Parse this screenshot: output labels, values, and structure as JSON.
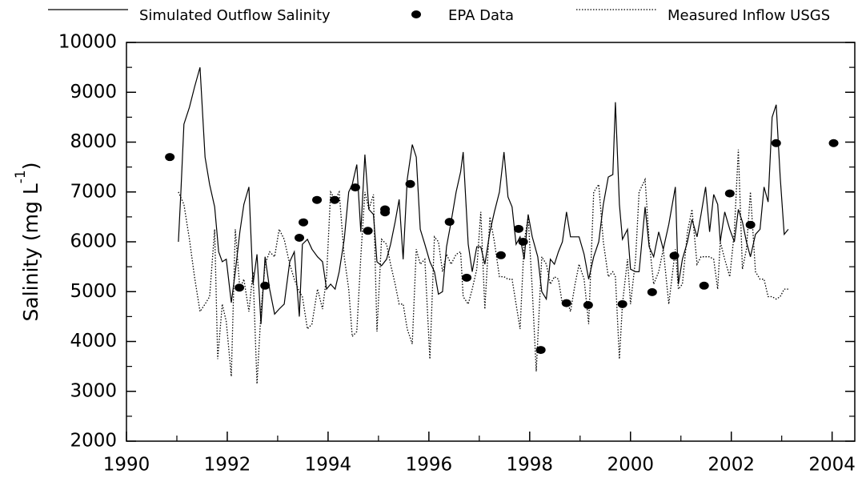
{
  "chart_data": {
    "type": "line",
    "y_label": {
      "text": "Salinity (mg L",
      "superscript": "-1",
      "closing": ")"
    },
    "xlim": [
      1990,
      2004.45
    ],
    "xticks": [
      1990,
      1992,
      1994,
      1996,
      1998,
      2000,
      2002,
      2004
    ],
    "ylim": [
      2000,
      10000
    ],
    "yticks": [
      2000,
      3000,
      4000,
      5000,
      6000,
      7000,
      8000,
      9000,
      10000
    ],
    "series": [
      {
        "name": "Simulated Outflow Salinity",
        "mark": "solid",
        "color": "#000000",
        "x": [
          1991.03,
          1991.08,
          1991.14,
          1991.25,
          1991.35,
          1991.46,
          1991.56,
          1991.65,
          1991.75,
          1991.83,
          1991.9,
          1991.98,
          1992.08,
          1992.16,
          1992.25,
          1992.33,
          1992.43,
          1992.51,
          1992.59,
          1992.67,
          1992.75,
          1992.84,
          1992.94,
          1993.03,
          1993.13,
          1993.24,
          1993.33,
          1993.43,
          1993.49,
          1993.59,
          1993.68,
          1993.79,
          1993.89,
          1993.97,
          1994.05,
          1994.14,
          1994.22,
          1994.32,
          1994.41,
          1994.48,
          1994.57,
          1994.65,
          1994.73,
          1994.81,
          1994.9,
          1994.97,
          1995.06,
          1995.16,
          1995.24,
          1995.33,
          1995.41,
          1995.49,
          1995.57,
          1995.67,
          1995.75,
          1995.83,
          1995.92,
          1996.02,
          1996.11,
          1996.19,
          1996.27,
          1996.35,
          1996.44,
          1996.54,
          1996.63,
          1996.68,
          1996.78,
          1996.86,
          1996.95,
          1997.03,
          1997.11,
          1997.21,
          1997.3,
          1997.4,
          1997.49,
          1997.57,
          1997.65,
          1997.73,
          1997.81,
          1997.89,
          1997.97,
          1998.05,
          1998.16,
          1998.24,
          1998.33,
          1998.41,
          1998.49,
          1998.57,
          1998.65,
          1998.73,
          1998.81,
          1998.9,
          1998.98,
          1999.08,
          1999.17,
          1999.27,
          1999.37,
          1999.46,
          1999.56,
          1999.65,
          1999.7,
          1999.78,
          1999.84,
          1999.94,
          2000.0,
          2000.1,
          2000.17,
          2000.29,
          2000.37,
          2000.46,
          2000.56,
          2000.65,
          2000.76,
          2000.89,
          2000.95,
          2001.03,
          2001.13,
          2001.22,
          2001.32,
          2001.4,
          2001.49,
          2001.57,
          2001.65,
          2001.73,
          2001.78,
          2001.87,
          2001.97,
          2002.06,
          2002.14,
          2002.22,
          2002.3,
          2002.38,
          2002.48,
          2002.57,
          2002.65,
          2002.73,
          2002.81,
          2002.89,
          2002.97,
          2003.05,
          2003.13
        ],
        "values": [
          6000,
          7000,
          8360,
          8700,
          9100,
          9500,
          7700,
          7150,
          6700,
          5800,
          5600,
          5650,
          4780,
          5400,
          6200,
          6750,
          7100,
          5150,
          5750,
          4350,
          5700,
          5050,
          4550,
          4650,
          4750,
          5600,
          5800,
          4500,
          5950,
          6050,
          5850,
          5700,
          5600,
          5050,
          5150,
          5050,
          5400,
          6050,
          7000,
          7150,
          7550,
          6200,
          7750,
          6650,
          6550,
          5600,
          5520,
          5650,
          5950,
          6400,
          6850,
          5650,
          7250,
          7950,
          7700,
          6250,
          5950,
          5600,
          5400,
          4950,
          5000,
          5900,
          6400,
          7000,
          7400,
          7800,
          5950,
          5400,
          5900,
          5900,
          5550,
          6200,
          6600,
          7000,
          7800,
          6900,
          6700,
          5950,
          6100,
          5650,
          6550,
          6100,
          5700,
          5000,
          4850,
          5650,
          5550,
          5800,
          6000,
          6600,
          6100,
          6100,
          6100,
          5750,
          5250,
          5700,
          6000,
          6750,
          7300,
          7350,
          8800,
          6750,
          6050,
          6250,
          5450,
          5400,
          5400,
          6700,
          5900,
          5700,
          6200,
          5850,
          6350,
          7100,
          5150,
          5650,
          6000,
          6450,
          6100,
          6550,
          7100,
          6200,
          6950,
          6750,
          6000,
          6600,
          6250,
          6000,
          6650,
          6400,
          6000,
          5700,
          6150,
          6250,
          7100,
          6800,
          8500,
          8750,
          7300,
          6150,
          6250
        ]
      },
      {
        "name": "EPA Data",
        "mark": "dots",
        "color": "#000000",
        "x": [
          1990.86,
          1992.24,
          1992.75,
          1993.43,
          1993.51,
          1993.78,
          1994.13,
          1994.54,
          1994.79,
          1995.13,
          1995.13,
          1995.63,
          1996.41,
          1996.75,
          1997.43,
          1997.78,
          1997.87,
          1998.22,
          1998.73,
          1999.16,
          1999.84,
          2000.43,
          2000.87,
          2001.46,
          2001.97,
          2002.38,
          2002.89,
          2004.03
        ],
        "values": [
          7700,
          5080,
          5120,
          6080,
          6390,
          6840,
          6840,
          7090,
          6220,
          6650,
          6590,
          7160,
          6400,
          5280,
          5730,
          6260,
          6000,
          3830,
          4770,
          4730,
          4750,
          4990,
          5720,
          5120,
          6970,
          6340,
          7980,
          7980
        ]
      },
      {
        "name": "Measured Inflow USGS",
        "mark": "dotted",
        "color": "#000000",
        "x": [
          1991.03,
          1991.14,
          1991.25,
          1991.35,
          1991.46,
          1991.56,
          1991.65,
          1991.75,
          1991.81,
          1991.9,
          1991.98,
          1992.08,
          1992.16,
          1992.25,
          1992.33,
          1992.43,
          1992.51,
          1992.59,
          1992.67,
          1992.75,
          1992.84,
          1992.94,
          1993.03,
          1993.13,
          1993.24,
          1993.33,
          1993.43,
          1993.49,
          1993.59,
          1993.68,
          1993.79,
          1993.89,
          1993.97,
          1994.05,
          1994.14,
          1994.22,
          1994.32,
          1994.41,
          1994.48,
          1994.57,
          1994.65,
          1994.73,
          1994.81,
          1994.9,
          1994.97,
          1995.06,
          1995.16,
          1995.24,
          1995.33,
          1995.41,
          1995.49,
          1995.57,
          1995.67,
          1995.75,
          1995.83,
          1995.92,
          1996.02,
          1996.11,
          1996.19,
          1996.27,
          1996.35,
          1996.44,
          1996.54,
          1996.63,
          1996.68,
          1996.78,
          1996.86,
          1996.95,
          1997.03,
          1997.11,
          1997.21,
          1997.3,
          1997.4,
          1997.49,
          1997.57,
          1997.65,
          1997.73,
          1997.81,
          1997.89,
          1997.97,
          1998.05,
          1998.13,
          1998.24,
          1998.33,
          1998.41,
          1998.49,
          1998.57,
          1998.65,
          1998.73,
          1998.81,
          1998.9,
          1998.98,
          1999.08,
          1999.17,
          1999.27,
          1999.37,
          1999.46,
          1999.56,
          1999.65,
          1999.7,
          1999.78,
          1999.84,
          1999.94,
          2000.0,
          2000.1,
          2000.17,
          2000.29,
          2000.37,
          2000.46,
          2000.56,
          2000.65,
          2000.76,
          2000.89,
          2000.95,
          2001.03,
          2001.13,
          2001.22,
          2001.32,
          2001.4,
          2001.49,
          2001.57,
          2001.65,
          2001.73,
          2001.78,
          2001.87,
          2001.97,
          2002.06,
          2002.14,
          2002.22,
          2002.3,
          2002.38,
          2002.48,
          2002.57,
          2002.65,
          2002.73,
          2002.81,
          2002.89,
          2002.97,
          2003.05,
          2003.13
        ],
        "values": [
          7000,
          6750,
          6050,
          5300,
          4600,
          4750,
          4900,
          6250,
          3650,
          4750,
          4400,
          3300,
          6250,
          5050,
          5250,
          4600,
          5400,
          3150,
          4600,
          5550,
          5800,
          5700,
          6250,
          6050,
          5550,
          5250,
          5000,
          4900,
          4250,
          4350,
          5050,
          4650,
          5300,
          7000,
          6850,
          7000,
          5700,
          5050,
          4100,
          4200,
          5700,
          7000,
          6650,
          6950,
          4200,
          6050,
          5950,
          5550,
          5150,
          4750,
          4750,
          4250,
          3950,
          5850,
          5550,
          5650,
          3650,
          6100,
          6000,
          5400,
          5750,
          5550,
          5750,
          5800,
          4900,
          4750,
          5050,
          5450,
          6600,
          4650,
          6500,
          6000,
          5300,
          5300,
          5250,
          5250,
          4750,
          4250,
          6000,
          6500,
          5050,
          3400,
          5700,
          5550,
          5150,
          5300,
          5250,
          4750,
          4850,
          4600,
          5150,
          5550,
          5250,
          4350,
          7000,
          7150,
          6000,
          5300,
          5400,
          5300,
          3650,
          4750,
          5650,
          4750,
          5650,
          7000,
          7250,
          6000,
          5150,
          5400,
          5850,
          4750,
          5850,
          5050,
          5150,
          6200,
          6650,
          5550,
          5700,
          5700,
          5700,
          5650,
          5050,
          6000,
          5650,
          5300,
          6200,
          7850,
          5450,
          5850,
          7000,
          5400,
          5250,
          5250,
          4900,
          4900,
          4850,
          4900,
          5050,
          5050
        ]
      }
    ]
  }
}
